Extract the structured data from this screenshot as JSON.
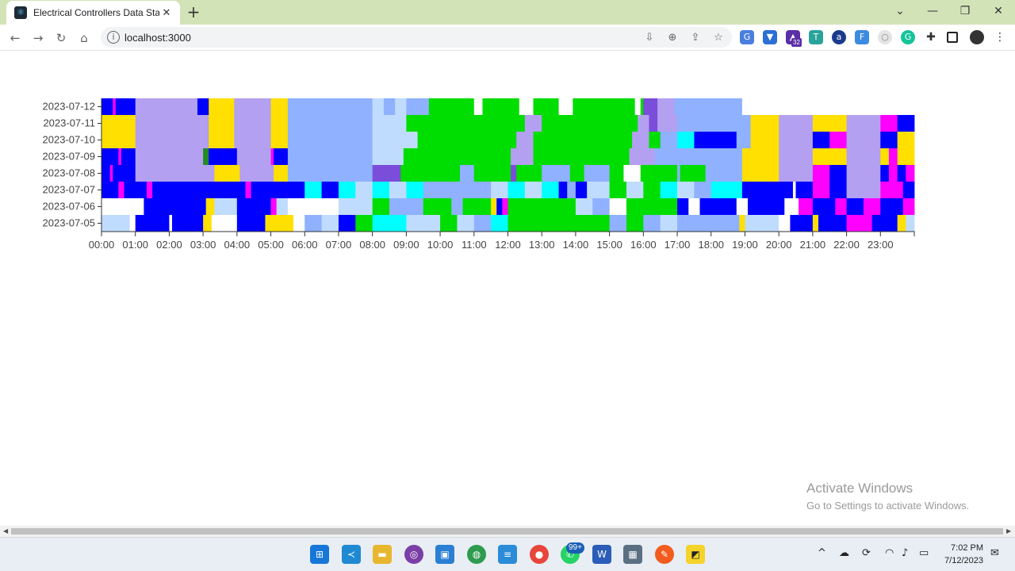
{
  "browser": {
    "tab_title": "Electrical Controllers Data Stat",
    "url": "localhost:3000"
  },
  "chart_data": {
    "type": "heatmap",
    "title": "",
    "xlabel": "",
    "ylabel": "",
    "rows": [
      "2023-07-12",
      "2023-07-11",
      "2023-07-10",
      "2023-07-09",
      "2023-07-08",
      "2023-07-07",
      "2023-07-06",
      "2023-07-05"
    ],
    "x_ticks": [
      "00:00",
      "01:00",
      "02:00",
      "03:00",
      "04:00",
      "05:00",
      "06:00",
      "07:00",
      "08:00",
      "09:00",
      "10:00",
      "11:00",
      "12:00",
      "13:00",
      "14:00",
      "15:00",
      "16:00",
      "17:00",
      "18:00",
      "19:00",
      "20:00",
      "21:00",
      "22:00",
      "23:00"
    ],
    "x_range": [
      "00:00",
      "24:00"
    ],
    "palette": {
      "B": "#0000ff",
      "M": "#ff00ff",
      "L": "#b3a0f0",
      "Y": "#ffe000",
      "S": "#8fb1ff",
      "P": "#bfdcff",
      "G": "#00dd00",
      "V": "#7b4ddb",
      "C": "#00ffff",
      "W": "#ffffff",
      "D": "#228b22"
    },
    "grid": false,
    "legend": "none",
    "segments": {
      "2023-07-12": [
        [
          "00:00",
          "B"
        ],
        [
          "00:20",
          "M"
        ],
        [
          "00:25",
          "B"
        ],
        [
          "01:00",
          "L"
        ],
        [
          "02:50",
          "B"
        ],
        [
          "03:10",
          "Y"
        ],
        [
          "03:55",
          "L"
        ],
        [
          "05:00",
          "Y"
        ],
        [
          "05:30",
          "S"
        ],
        [
          "08:00",
          "P"
        ],
        [
          "08:20",
          "S"
        ],
        [
          "08:40",
          "P"
        ],
        [
          "09:00",
          "S"
        ],
        [
          "09:40",
          "G"
        ],
        [
          "11:00",
          "W"
        ],
        [
          "11:15",
          "G"
        ],
        [
          "12:20",
          "W"
        ],
        [
          "12:45",
          "G"
        ],
        [
          "13:30",
          "W"
        ],
        [
          "13:55",
          "G"
        ],
        [
          "15:45",
          "W"
        ],
        [
          "15:55",
          "G"
        ],
        [
          "16:00",
          "V"
        ],
        [
          "16:25",
          "L"
        ],
        [
          "16:55",
          "S"
        ],
        [
          "18:55",
          "W"
        ],
        [
          "24:00",
          "W"
        ]
      ],
      "2023-07-11": [
        [
          "00:00",
          "Y"
        ],
        [
          "01:00",
          "L"
        ],
        [
          "03:10",
          "Y"
        ],
        [
          "03:55",
          "L"
        ],
        [
          "05:00",
          "Y"
        ],
        [
          "05:30",
          "S"
        ],
        [
          "08:00",
          "P"
        ],
        [
          "09:00",
          "G"
        ],
        [
          "11:45",
          "G"
        ],
        [
          "12:30",
          "L"
        ],
        [
          "13:00",
          "G"
        ],
        [
          "15:50",
          "L"
        ],
        [
          "16:10",
          "V"
        ],
        [
          "16:25",
          "L"
        ],
        [
          "17:00",
          "S"
        ],
        [
          "19:10",
          "Y"
        ],
        [
          "20:00",
          "L"
        ],
        [
          "21:00",
          "Y"
        ],
        [
          "22:00",
          "L"
        ],
        [
          "23:00",
          "M"
        ],
        [
          "23:30",
          "B"
        ],
        [
          "24:00",
          "B"
        ]
      ],
      "2023-07-10": [
        [
          "00:00",
          "Y"
        ],
        [
          "01:00",
          "L"
        ],
        [
          "03:10",
          "Y"
        ],
        [
          "03:55",
          "L"
        ],
        [
          "05:00",
          "Y"
        ],
        [
          "05:30",
          "S"
        ],
        [
          "08:00",
          "P"
        ],
        [
          "09:20",
          "G"
        ],
        [
          "12:00",
          "G"
        ],
        [
          "12:15",
          "L"
        ],
        [
          "12:45",
          "G"
        ],
        [
          "15:40",
          "L"
        ],
        [
          "16:10",
          "G"
        ],
        [
          "16:30",
          "S"
        ],
        [
          "17:00",
          "C"
        ],
        [
          "17:30",
          "B"
        ],
        [
          "18:45",
          "S"
        ],
        [
          "19:10",
          "Y"
        ],
        [
          "20:00",
          "L"
        ],
        [
          "21:00",
          "B"
        ],
        [
          "21:30",
          "M"
        ],
        [
          "22:00",
          "L"
        ],
        [
          "23:00",
          "B"
        ],
        [
          "23:30",
          "Y"
        ],
        [
          "24:00",
          "Y"
        ]
      ],
      "2023-07-09": [
        [
          "00:00",
          "B"
        ],
        [
          "00:30",
          "M"
        ],
        [
          "00:35",
          "B"
        ],
        [
          "01:00",
          "L"
        ],
        [
          "03:00",
          "D"
        ],
        [
          "03:10",
          "B"
        ],
        [
          "04:00",
          "L"
        ],
        [
          "05:00",
          "M"
        ],
        [
          "05:05",
          "B"
        ],
        [
          "05:30",
          "S"
        ],
        [
          "08:00",
          "P"
        ],
        [
          "08:55",
          "G"
        ],
        [
          "12:05",
          "L"
        ],
        [
          "12:45",
          "G"
        ],
        [
          "15:35",
          "L"
        ],
        [
          "16:20",
          "S"
        ],
        [
          "18:55",
          "Y"
        ],
        [
          "20:00",
          "L"
        ],
        [
          "21:00",
          "Y"
        ],
        [
          "22:00",
          "L"
        ],
        [
          "23:00",
          "Y"
        ],
        [
          "23:15",
          "M"
        ],
        [
          "23:30",
          "Y"
        ],
        [
          "24:00",
          "Y"
        ]
      ],
      "2023-07-08": [
        [
          "00:00",
          "B"
        ],
        [
          "00:15",
          "M"
        ],
        [
          "00:20",
          "B"
        ],
        [
          "01:00",
          "L"
        ],
        [
          "03:20",
          "Y"
        ],
        [
          "04:05",
          "L"
        ],
        [
          "05:05",
          "Y"
        ],
        [
          "05:30",
          "S"
        ],
        [
          "08:00",
          "V"
        ],
        [
          "08:50",
          "G"
        ],
        [
          "10:35",
          "S"
        ],
        [
          "11:00",
          "G"
        ],
        [
          "12:05",
          "V"
        ],
        [
          "12:15",
          "G"
        ],
        [
          "13:00",
          "S"
        ],
        [
          "13:50",
          "G"
        ],
        [
          "14:15",
          "S"
        ],
        [
          "15:00",
          "G"
        ],
        [
          "15:25",
          "W"
        ],
        [
          "15:55",
          "G"
        ],
        [
          "17:00",
          "S"
        ],
        [
          "17:05",
          "G"
        ],
        [
          "17:50",
          "S"
        ],
        [
          "18:55",
          "Y"
        ],
        [
          "19:30",
          "Y"
        ],
        [
          "20:00",
          "L"
        ],
        [
          "21:00",
          "M"
        ],
        [
          "21:30",
          "B"
        ],
        [
          "22:00",
          "L"
        ],
        [
          "23:00",
          "B"
        ],
        [
          "23:15",
          "M"
        ],
        [
          "23:30",
          "B"
        ],
        [
          "23:45",
          "M"
        ],
        [
          "24:00",
          "M"
        ]
      ],
      "2023-07-07": [
        [
          "00:00",
          "B"
        ],
        [
          "00:30",
          "M"
        ],
        [
          "00:40",
          "B"
        ],
        [
          "01:20",
          "M"
        ],
        [
          "01:30",
          "B"
        ],
        [
          "04:15",
          "M"
        ],
        [
          "04:25",
          "B"
        ],
        [
          "06:00",
          "C"
        ],
        [
          "06:30",
          "B"
        ],
        [
          "07:00",
          "C"
        ],
        [
          "07:30",
          "P"
        ],
        [
          "08:00",
          "C"
        ],
        [
          "08:30",
          "P"
        ],
        [
          "09:00",
          "C"
        ],
        [
          "09:30",
          "S"
        ],
        [
          "11:30",
          "P"
        ],
        [
          "12:00",
          "C"
        ],
        [
          "12:30",
          "P"
        ],
        [
          "13:00",
          "C"
        ],
        [
          "13:30",
          "B"
        ],
        [
          "13:45",
          "S"
        ],
        [
          "14:00",
          "B"
        ],
        [
          "14:20",
          "P"
        ],
        [
          "15:00",
          "G"
        ],
        [
          "15:30",
          "P"
        ],
        [
          "16:00",
          "G"
        ],
        [
          "16:30",
          "C"
        ],
        [
          "17:00",
          "P"
        ],
        [
          "17:30",
          "S"
        ],
        [
          "18:00",
          "C"
        ],
        [
          "18:55",
          "B"
        ],
        [
          "20:25",
          "W"
        ],
        [
          "20:30",
          "B"
        ],
        [
          "21:00",
          "M"
        ],
        [
          "21:30",
          "B"
        ],
        [
          "22:00",
          "L"
        ],
        [
          "23:00",
          "M"
        ],
        [
          "23:40",
          "B"
        ],
        [
          "24:00",
          "B"
        ]
      ],
      "2023-07-06": [
        [
          "00:00",
          "W"
        ],
        [
          "01:15",
          "B"
        ],
        [
          "03:05",
          "Y"
        ],
        [
          "03:20",
          "P"
        ],
        [
          "04:00",
          "B"
        ],
        [
          "05:00",
          "M"
        ],
        [
          "05:10",
          "P"
        ],
        [
          "05:30",
          "W"
        ],
        [
          "07:00",
          "P"
        ],
        [
          "08:00",
          "G"
        ],
        [
          "08:30",
          "S"
        ],
        [
          "09:30",
          "G"
        ],
        [
          "10:20",
          "S"
        ],
        [
          "10:40",
          "G"
        ],
        [
          "11:30",
          "Y"
        ],
        [
          "11:40",
          "B"
        ],
        [
          "11:50",
          "M"
        ],
        [
          "12:00",
          "G"
        ],
        [
          "14:00",
          "P"
        ],
        [
          "14:30",
          "S"
        ],
        [
          "15:00",
          "W"
        ],
        [
          "15:30",
          "G"
        ],
        [
          "17:00",
          "B"
        ],
        [
          "17:20",
          "W"
        ],
        [
          "17:40",
          "B"
        ],
        [
          "18:45",
          "W"
        ],
        [
          "19:05",
          "B"
        ],
        [
          "20:10",
          "W"
        ],
        [
          "20:35",
          "M"
        ],
        [
          "21:00",
          "B"
        ],
        [
          "21:40",
          "M"
        ],
        [
          "22:00",
          "B"
        ],
        [
          "22:30",
          "M"
        ],
        [
          "23:00",
          "B"
        ],
        [
          "23:40",
          "M"
        ],
        [
          "24:00",
          "M"
        ]
      ],
      "2023-07-05": [
        [
          "00:00",
          "P"
        ],
        [
          "00:50",
          "W"
        ],
        [
          "01:00",
          "B"
        ],
        [
          "02:00",
          "W"
        ],
        [
          "02:05",
          "B"
        ],
        [
          "03:00",
          "Y"
        ],
        [
          "03:15",
          "W"
        ],
        [
          "04:00",
          "B"
        ],
        [
          "04:50",
          "Y"
        ],
        [
          "05:40",
          "W"
        ],
        [
          "06:00",
          "S"
        ],
        [
          "06:30",
          "P"
        ],
        [
          "07:00",
          "B"
        ],
        [
          "07:30",
          "G"
        ],
        [
          "08:00",
          "C"
        ],
        [
          "09:00",
          "P"
        ],
        [
          "10:00",
          "G"
        ],
        [
          "10:30",
          "P"
        ],
        [
          "11:00",
          "S"
        ],
        [
          "11:30",
          "C"
        ],
        [
          "12:00",
          "G"
        ],
        [
          "15:00",
          "S"
        ],
        [
          "15:30",
          "G"
        ],
        [
          "16:00",
          "S"
        ],
        [
          "16:30",
          "P"
        ],
        [
          "17:00",
          "S"
        ],
        [
          "18:50",
          "Y"
        ],
        [
          "19:00",
          "P"
        ],
        [
          "20:00",
          "W"
        ],
        [
          "20:20",
          "B"
        ],
        [
          "21:00",
          "Y"
        ],
        [
          "21:10",
          "B"
        ],
        [
          "22:00",
          "M"
        ],
        [
          "22:45",
          "B"
        ],
        [
          "23:30",
          "Y"
        ],
        [
          "23:45",
          "P"
        ],
        [
          "24:00",
          "P"
        ]
      ]
    }
  },
  "watermark": {
    "line1": "Activate Windows",
    "line2": "Go to Settings to activate Windows."
  },
  "taskbar": {
    "whatsapp_badge": "99+",
    "time": "7:02 PM",
    "date": "7/12/2023"
  },
  "extensions": {
    "badge_count": "32"
  }
}
